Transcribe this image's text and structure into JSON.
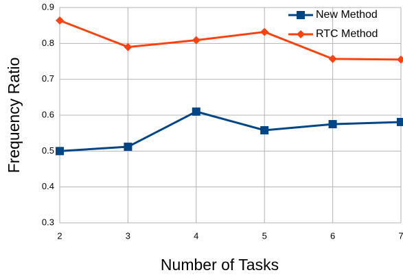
{
  "chart_data": {
    "type": "line",
    "x_label": "Number of Tasks",
    "y_label": "Frequency Ratio",
    "x": [
      2,
      3,
      4,
      5,
      6,
      7
    ],
    "series": [
      {
        "name": "New Method",
        "color": "#004586",
        "marker": "square",
        "values": [
          0.5,
          0.512,
          0.61,
          0.558,
          0.575,
          0.581
        ]
      },
      {
        "name": "RTC Method",
        "color": "#ff420e",
        "marker": "diamond",
        "values": [
          0.864,
          0.79,
          0.809,
          0.832,
          0.757,
          0.755
        ]
      }
    ],
    "xlim": [
      2,
      7
    ],
    "xticks": [
      2,
      3,
      4,
      5,
      6,
      7
    ],
    "ylim": [
      0.3,
      0.9
    ],
    "yticks": [
      0.3,
      0.4,
      0.5,
      0.6,
      0.7,
      0.8,
      0.9
    ],
    "grid": true,
    "legend": "upper right"
  }
}
